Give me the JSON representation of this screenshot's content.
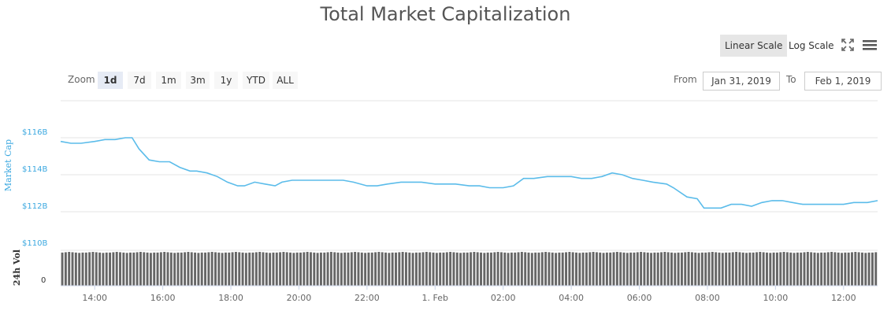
{
  "title": "Total Market Capitalization",
  "scale_buttons": {
    "linear": "Linear Scale",
    "log": "Log Scale",
    "active": "linear"
  },
  "toolbar_icons": [
    "fullscreen-icon",
    "hamburger-menu-icon"
  ],
  "zoom": {
    "label": "Zoom",
    "options": [
      "1d",
      "7d",
      "1m",
      "3m",
      "1y",
      "YTD",
      "ALL"
    ],
    "active": "1d"
  },
  "range": {
    "from_label": "From",
    "from": "Jan 31, 2019",
    "to_label": "To",
    "to": "Feb 1, 2019"
  },
  "colors": {
    "line": "#5bbcea",
    "axis_label": "#3ba8e0",
    "volume": "#666666",
    "grid": "#e6e6e6"
  },
  "chart_data": {
    "type": "line",
    "title": "Total Market Capitalization",
    "ylabel": "Market Cap",
    "y_ticks": [
      "$116B",
      "$114B",
      "$112B",
      "$110B"
    ],
    "ylim": [
      110,
      118
    ],
    "x_ticks": [
      "14:00",
      "16:00",
      "18:00",
      "20:00",
      "22:00",
      "1. Feb",
      "02:00",
      "04:00",
      "06:00",
      "08:00",
      "10:00",
      "12:00"
    ],
    "x_range_hours": [
      13,
      37
    ],
    "series": [
      {
        "values_unit": "billion USD",
        "points": [
          [
            13.0,
            115.8
          ],
          [
            13.3,
            115.7
          ],
          [
            13.6,
            115.7
          ],
          [
            14.0,
            115.8
          ],
          [
            14.3,
            115.9
          ],
          [
            14.6,
            115.9
          ],
          [
            14.9,
            116.0
          ],
          [
            15.1,
            116.0
          ],
          [
            15.3,
            115.4
          ],
          [
            15.6,
            114.8
          ],
          [
            15.9,
            114.7
          ],
          [
            16.2,
            114.7
          ],
          [
            16.5,
            114.4
          ],
          [
            16.8,
            114.2
          ],
          [
            17.0,
            114.2
          ],
          [
            17.3,
            114.1
          ],
          [
            17.6,
            113.9
          ],
          [
            17.9,
            113.6
          ],
          [
            18.2,
            113.4
          ],
          [
            18.4,
            113.4
          ],
          [
            18.7,
            113.6
          ],
          [
            19.0,
            113.5
          ],
          [
            19.3,
            113.4
          ],
          [
            19.5,
            113.6
          ],
          [
            19.8,
            113.7
          ],
          [
            20.1,
            113.7
          ],
          [
            20.4,
            113.7
          ],
          [
            20.7,
            113.7
          ],
          [
            21.0,
            113.7
          ],
          [
            21.3,
            113.7
          ],
          [
            21.6,
            113.6
          ],
          [
            22.0,
            113.4
          ],
          [
            22.3,
            113.4
          ],
          [
            22.6,
            113.5
          ],
          [
            23.0,
            113.6
          ],
          [
            23.3,
            113.6
          ],
          [
            23.6,
            113.6
          ],
          [
            24.0,
            113.5
          ],
          [
            24.3,
            113.5
          ],
          [
            24.6,
            113.5
          ],
          [
            25.0,
            113.4
          ],
          [
            25.3,
            113.4
          ],
          [
            25.6,
            113.3
          ],
          [
            26.0,
            113.3
          ],
          [
            26.3,
            113.4
          ],
          [
            26.6,
            113.8
          ],
          [
            26.9,
            113.8
          ],
          [
            27.3,
            113.9
          ],
          [
            27.6,
            113.9
          ],
          [
            28.0,
            113.9
          ],
          [
            28.3,
            113.8
          ],
          [
            28.6,
            113.8
          ],
          [
            28.9,
            113.9
          ],
          [
            29.2,
            114.1
          ],
          [
            29.5,
            114.0
          ],
          [
            29.8,
            113.8
          ],
          [
            30.1,
            113.7
          ],
          [
            30.4,
            113.6
          ],
          [
            30.8,
            113.5
          ],
          [
            31.0,
            113.3
          ],
          [
            31.4,
            112.8
          ],
          [
            31.7,
            112.7
          ],
          [
            31.9,
            112.2
          ],
          [
            32.2,
            112.2
          ],
          [
            32.4,
            112.2
          ],
          [
            32.7,
            112.4
          ],
          [
            33.0,
            112.4
          ],
          [
            33.3,
            112.3
          ],
          [
            33.6,
            112.5
          ],
          [
            33.9,
            112.6
          ],
          [
            34.2,
            112.6
          ],
          [
            34.5,
            112.5
          ],
          [
            34.8,
            112.4
          ],
          [
            35.1,
            112.4
          ],
          [
            35.4,
            112.4
          ],
          [
            35.7,
            112.4
          ],
          [
            36.0,
            112.4
          ],
          [
            36.3,
            112.5
          ],
          [
            36.7,
            112.5
          ],
          [
            37.0,
            112.6
          ]
        ]
      }
    ],
    "volume_label": "24h Vol",
    "volume_tick": "0",
    "volume_bar_count": 240,
    "volume_bars_relative": [
      0.98,
      0.99,
      1.0,
      0.99,
      0.98,
      0.97,
      0.98
    ]
  }
}
